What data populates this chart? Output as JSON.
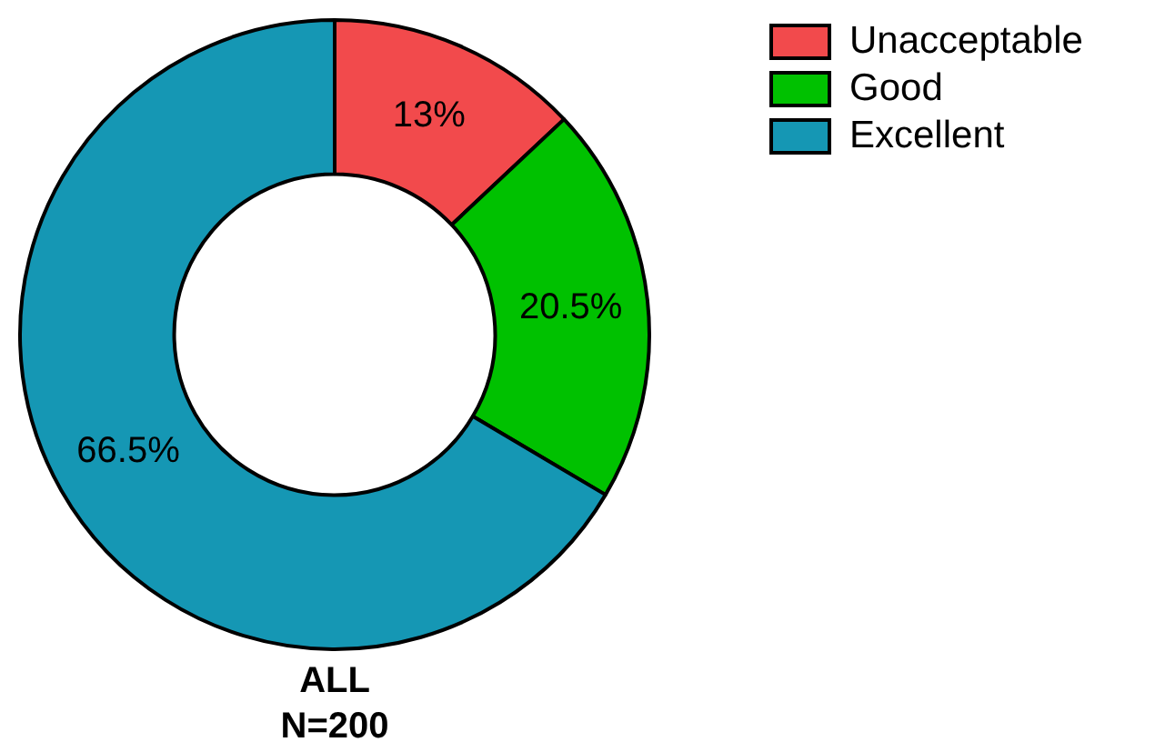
{
  "chart_data": {
    "type": "donut",
    "title": "ALL",
    "subtitle": "N=200",
    "categories": [
      "Unacceptable",
      "Good",
      "Excellent"
    ],
    "values": [
      13,
      20.5,
      66.5
    ],
    "colors": [
      "#f24a4c",
      "#00c100",
      "#1597b4"
    ],
    "value_labels": [
      "13%",
      "20.5%",
      "66.5%"
    ],
    "legend": "top right"
  }
}
